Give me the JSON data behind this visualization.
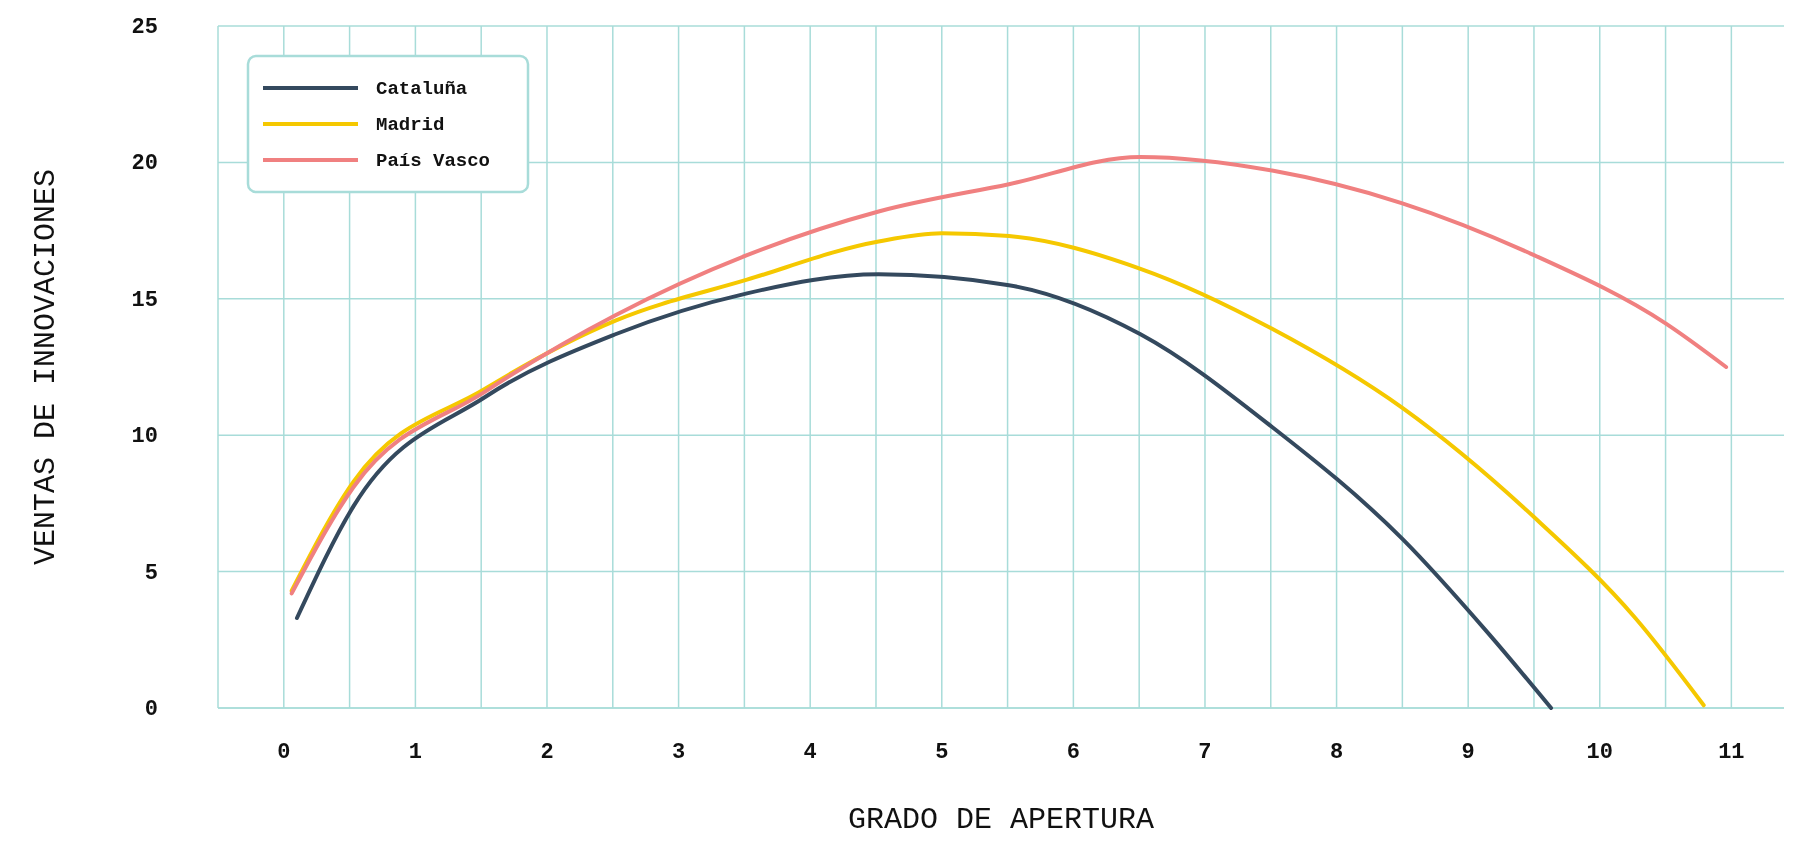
{
  "chart_data": {
    "type": "line",
    "xlabel": "GRADO DE APERTURA",
    "ylabel": "VENTAS DE INNOVACIONES",
    "xlim": [
      -0.5,
      11.4
    ],
    "ylim": [
      0,
      25
    ],
    "xticks": [
      {
        "value": -0.5,
        "label": null
      },
      0,
      {
        "value": 0.5,
        "label": null
      },
      1,
      {
        "value": 1.5,
        "label": null
      },
      2,
      {
        "value": 2.5,
        "label": null
      },
      3,
      {
        "value": 3.5,
        "label": null
      },
      4,
      {
        "value": 4.5,
        "label": null
      },
      5,
      {
        "value": 5.5,
        "label": null
      },
      6,
      {
        "value": 6.5,
        "label": null
      },
      7,
      {
        "value": 7.5,
        "label": null
      },
      8,
      {
        "value": 8.5,
        "label": null
      },
      9,
      {
        "value": 9.5,
        "label": null
      },
      10,
      {
        "value": 10.5,
        "label": null
      },
      11
    ],
    "yticks": [
      0,
      5,
      10,
      15,
      20,
      25
    ],
    "grid": true,
    "legend": "top left",
    "marker": "none",
    "line_style": "solid",
    "series": [
      {
        "name": "Cataluña",
        "color": "#34495e",
        "x": [
          0.1,
          0.53,
          1.53,
          2.52,
          3.52,
          4.52,
          5.51,
          6.51,
          7.51,
          8.5,
          9.16,
          9.63
        ],
        "values": [
          3.3,
          7.4,
          11.4,
          13.7,
          15.2,
          15.9,
          15.5,
          13.7,
          10.3,
          6.2,
          2.7,
          0
        ]
      },
      {
        "name": "Madrid",
        "color": "#f5c800",
        "x": [
          0.06,
          0.53,
          1.53,
          2.52,
          3.52,
          4.52,
          5.0,
          5.51,
          6.51,
          7.51,
          8.5,
          9.5,
          10.27,
          10.79
        ],
        "values": [
          4.3,
          8.3,
          11.7,
          14.2,
          15.7,
          17.1,
          17.4,
          17.3,
          16.1,
          13.9,
          11.0,
          7.0,
          3.3,
          0.1
        ]
      },
      {
        "name": "País Vasco",
        "color": "#f08080",
        "x": [
          0.06,
          0.53,
          1.53,
          2.52,
          3.52,
          4.52,
          5.51,
          6.51,
          7.51,
          8.5,
          9.5,
          10.5,
          10.96
        ],
        "values": [
          4.2,
          8.1,
          11.6,
          14.4,
          16.6,
          18.2,
          19.2,
          20.2,
          19.7,
          18.5,
          16.6,
          14.1,
          12.5
        ]
      }
    ]
  }
}
